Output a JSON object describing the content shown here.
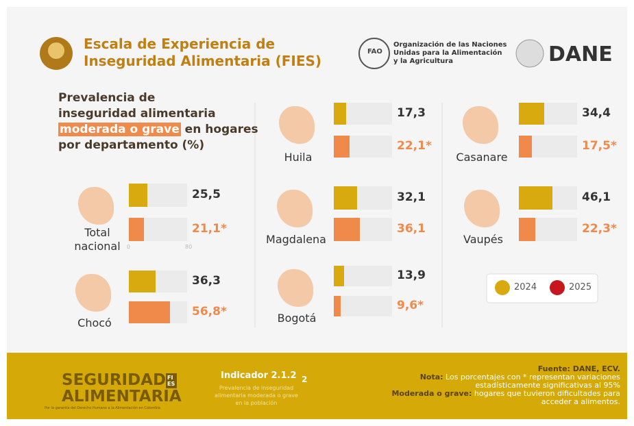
{
  "header": {
    "title": [
      "Escala de Experiencia de",
      "Inseguridad Alimentaria (FIES)"
    ],
    "fao_logo": "FAO",
    "fao": [
      "Organización de las Naciones",
      "Unidas para la Alimentación",
      "y la Agricultura"
    ],
    "dane": "DANE"
  },
  "subtitle": {
    "lines": [
      "Prevalencia de",
      "inseguridad alimentaria"
    ],
    "highlight": "moderada o grave",
    "after": "en hogares",
    "last": "por departamento (%)"
  },
  "axis": {
    "xlim": [
      0,
      80
    ],
    "xticks": [
      0,
      80
    ]
  },
  "bar_colors": [
    "#d8aa10",
    "#f08a4a"
  ],
  "legend": [
    {
      "name": "2024",
      "color": "#d8aa10"
    },
    {
      "name": "2025",
      "color": "#c8161e"
    }
  ],
  "regions": [
    {
      "name": "Total nacional",
      "values": [
        25.5,
        21.1
      ],
      "value_labels": [
        "25,5",
        "21,1*"
      ]
    },
    {
      "name": "Chocó",
      "values": [
        36.3,
        56.8
      ],
      "value_labels": [
        "36,3",
        "56,8*"
      ]
    },
    {
      "name": "Huila",
      "values": [
        17.3,
        22.1
      ],
      "value_labels": [
        "17,3",
        "22,1*"
      ]
    },
    {
      "name": "Magdalena",
      "values": [
        32.1,
        36.1
      ],
      "value_labels": [
        "32,1",
        "36,1"
      ]
    },
    {
      "name": "Bogotá",
      "values": [
        13.9,
        9.6
      ],
      "value_labels": [
        "13,9",
        "9,6*"
      ]
    },
    {
      "name": "Casanare",
      "values": [
        34.4,
        17.5
      ],
      "value_labels": [
        "34,4",
        "17,5*"
      ]
    },
    {
      "name": "Vaupés",
      "values": [
        46.1,
        22.3
      ],
      "value_labels": [
        "46,1",
        "22,3*"
      ]
    }
  ],
  "footer": {
    "logo": [
      "SEGURIDAD",
      "ALIMENTARIA"
    ],
    "logo_badge": "FIES",
    "tagline": "Por la garantía del Derecho Humano a la Alimentación en Colombia",
    "indicator": "Indicador 2.1.2",
    "indicator_text": "Prevalencia de inseguridad alimentaria moderada o grave en la población",
    "sdg": "2",
    "source": "Fuente: DANE, ECV.",
    "note_label": "Nota:",
    "note": "Los porcentajes con * representan variaciones estadísticamente significativas al 95%",
    "def_label": "Moderada o grave:",
    "def": "hogares que tuvieron dificultades para acceder a alimentos."
  }
}
